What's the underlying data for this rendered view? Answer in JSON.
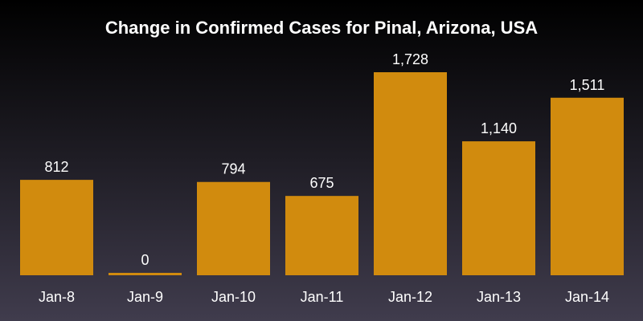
{
  "chart_data": {
    "type": "bar",
    "title": "Change in Confirmed Cases for Pinal, Arizona, USA",
    "categories": [
      "Jan-8",
      "Jan-9",
      "Jan-10",
      "Jan-11",
      "Jan-12",
      "Jan-13",
      "Jan-14"
    ],
    "values": [
      812,
      0,
      794,
      675,
      1728,
      1140,
      1511
    ],
    "data_labels": [
      "812",
      "0",
      "794",
      "675",
      "1,728",
      "1,140",
      "1,511"
    ],
    "xlabel": "",
    "ylabel": "",
    "ylim": [
      0,
      1728
    ],
    "grid": false,
    "legend": "none",
    "colors": {
      "bar": "#d18b0e",
      "text": "#ffffff",
      "background_top": "#000000",
      "background_bottom": "#403c4d"
    }
  }
}
